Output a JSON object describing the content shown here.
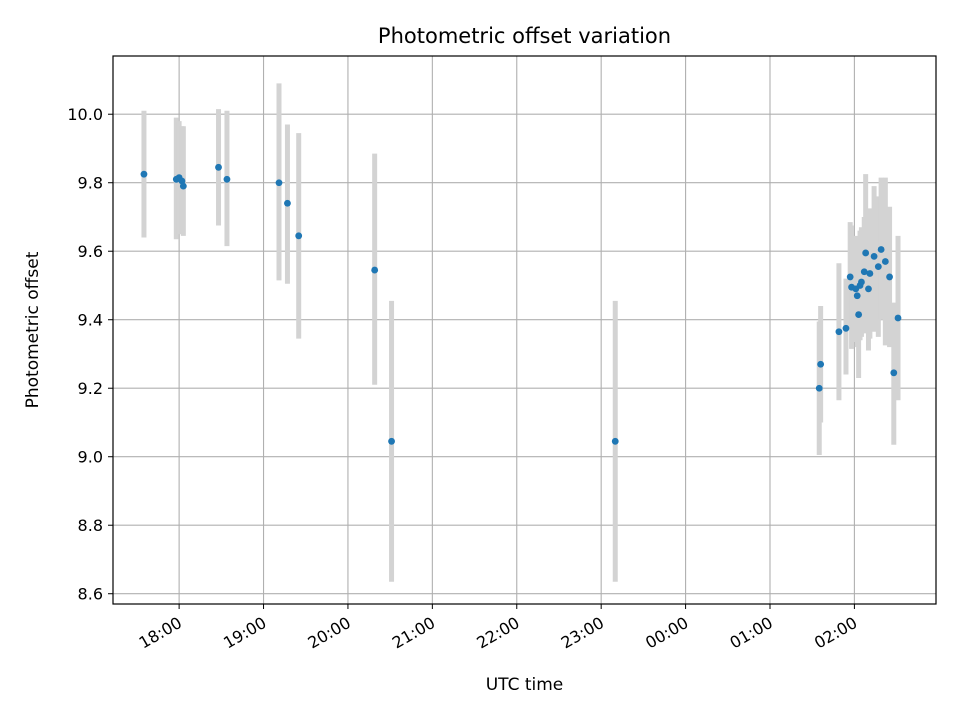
{
  "chart_data": {
    "type": "scatter",
    "title": "Photometric offset variation",
    "xlabel": "UTC time",
    "ylabel": "Photometric offset",
    "x_axis_kind": "time (UTC, spans midnight)",
    "xlim": [
      "17:13",
      "02:58 (+1 day)"
    ],
    "ylim": [
      8.57,
      10.17
    ],
    "x_ticks": [
      "18:00",
      "19:00",
      "20:00",
      "21:00",
      "22:00",
      "23:00",
      "00:00",
      "01:00",
      "02:00"
    ],
    "y_ticks": [
      "8.6",
      "8.8",
      "9.0",
      "9.2",
      "9.4",
      "9.6",
      "9.8",
      "10.0"
    ],
    "grid": true,
    "marker_color": "#1f77b4",
    "errorbar_color": "#d3d3d3",
    "series": [
      {
        "points": [
          {
            "t": "17:35",
            "y": 9.825,
            "lo": 9.64,
            "hi": 10.01
          },
          {
            "t": "17:58",
            "y": 9.81,
            "lo": 9.635,
            "hi": 9.99
          },
          {
            "t": "18:00",
            "y": 9.815,
            "lo": 9.65,
            "hi": 9.98
          },
          {
            "t": "18:02",
            "y": 9.805,
            "lo": 9.65,
            "hi": 9.965
          },
          {
            "t": "18:03",
            "y": 9.79,
            "lo": 9.645,
            "hi": 9.965
          },
          {
            "t": "18:28",
            "y": 9.845,
            "lo": 9.675,
            "hi": 10.015
          },
          {
            "t": "18:34",
            "y": 9.81,
            "lo": 9.615,
            "hi": 10.01
          },
          {
            "t": "19:11",
            "y": 9.8,
            "lo": 9.515,
            "hi": 10.09
          },
          {
            "t": "19:17",
            "y": 9.74,
            "lo": 9.505,
            "hi": 9.97
          },
          {
            "t": "19:25",
            "y": 9.645,
            "lo": 9.345,
            "hi": 9.945
          },
          {
            "t": "20:19",
            "y": 9.545,
            "lo": 9.21,
            "hi": 9.885
          },
          {
            "t": "20:31",
            "y": 9.045,
            "lo": 8.635,
            "hi": 9.455
          },
          {
            "t": "23:10",
            "y": 9.045,
            "lo": 8.635,
            "hi": 9.455
          },
          {
            "t": "01:35",
            "y": 9.2,
            "lo": 9.005,
            "hi": 9.395
          },
          {
            "t": "01:36",
            "y": 9.27,
            "lo": 9.1,
            "hi": 9.44
          },
          {
            "t": "01:49",
            "y": 9.365,
            "lo": 9.165,
            "hi": 9.565
          },
          {
            "t": "01:54",
            "y": 9.375,
            "lo": 9.24,
            "hi": 9.52
          },
          {
            "t": "01:57",
            "y": 9.525,
            "lo": 9.37,
            "hi": 9.685
          },
          {
            "t": "01:58",
            "y": 9.495,
            "lo": 9.315,
            "hi": 9.675
          },
          {
            "t": "02:01",
            "y": 9.49,
            "lo": 9.335,
            "hi": 9.645
          },
          {
            "t": "02:02",
            "y": 9.47,
            "lo": 9.32,
            "hi": 9.63
          },
          {
            "t": "02:03",
            "y": 9.415,
            "lo": 9.23,
            "hi": 9.6
          },
          {
            "t": "02:04",
            "y": 9.5,
            "lo": 9.34,
            "hi": 9.66
          },
          {
            "t": "02:05",
            "y": 9.51,
            "lo": 9.35,
            "hi": 9.67
          },
          {
            "t": "02:07",
            "y": 9.54,
            "lo": 9.385,
            "hi": 9.7
          },
          {
            "t": "02:08",
            "y": 9.595,
            "lo": 9.36,
            "hi": 9.825
          },
          {
            "t": "02:10",
            "y": 9.49,
            "lo": 9.31,
            "hi": 9.67
          },
          {
            "t": "02:11",
            "y": 9.535,
            "lo": 9.345,
            "hi": 9.725
          },
          {
            "t": "02:14",
            "y": 9.585,
            "lo": 9.365,
            "hi": 9.79
          },
          {
            "t": "02:17",
            "y": 9.555,
            "lo": 9.35,
            "hi": 9.76
          },
          {
            "t": "02:19",
            "y": 9.605,
            "lo": 9.4,
            "hi": 9.815
          },
          {
            "t": "02:22",
            "y": 9.57,
            "lo": 9.325,
            "hi": 9.815
          },
          {
            "t": "02:25",
            "y": 9.525,
            "lo": 9.32,
            "hi": 9.73
          },
          {
            "t": "02:28",
            "y": 9.245,
            "lo": 9.035,
            "hi": 9.45
          },
          {
            "t": "02:31",
            "y": 9.405,
            "lo": 9.165,
            "hi": 9.645
          }
        ]
      }
    ]
  }
}
